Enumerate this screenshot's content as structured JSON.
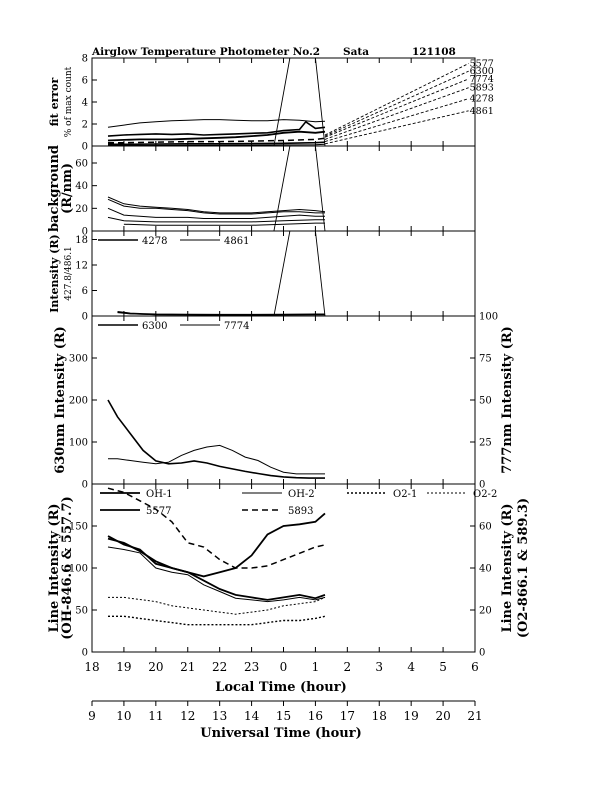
{
  "header": {
    "title": "Airglow Temperature Photometer No.2",
    "site": "Sata",
    "date": "121108"
  },
  "x_axes": {
    "local": {
      "label": "Local Time (hour)",
      "ticks": [
        "18",
        "19",
        "20",
        "21",
        "22",
        "23",
        "0",
        "1",
        "2",
        "3",
        "4",
        "5",
        "6"
      ],
      "range": [
        18,
        30
      ]
    },
    "universal": {
      "label": "Universal Time (hour)",
      "ticks": [
        "9",
        "10",
        "11",
        "12",
        "13",
        "14",
        "15",
        "16",
        "17",
        "18",
        "19",
        "20",
        "21"
      ],
      "range": [
        9,
        21
      ]
    }
  },
  "chart_data": [
    {
      "type": "line",
      "panel": "fit-error",
      "ylabel": "fit error",
      "ylabel2": "% of max count",
      "ylim": [
        0,
        8
      ],
      "yticks": [
        "0",
        "2",
        "4",
        "6",
        "8"
      ],
      "line_labels": [
        "5577",
        "6300",
        "7774",
        "5893",
        "4278",
        "4861"
      ],
      "series": [
        {
          "name": "7774",
          "x": [
            18.5,
            19,
            19.5,
            20,
            20.5,
            21,
            21.5,
            22,
            22.5,
            23,
            23.5,
            24,
            24.5,
            25,
            25.3
          ],
          "y": [
            1.7,
            1.9,
            2.1,
            2.2,
            2.3,
            2.35,
            2.4,
            2.4,
            2.35,
            2.3,
            2.3,
            2.4,
            2.35,
            2.2,
            2.25
          ]
        },
        {
          "name": "6300",
          "x": [
            18.5,
            19,
            19.5,
            20,
            20.5,
            21,
            21.5,
            22,
            22.5,
            23,
            23.5,
            24,
            24.5,
            24.7,
            25,
            25.3
          ],
          "y": [
            0.9,
            1.0,
            1.05,
            1.1,
            1.05,
            1.1,
            1.0,
            1.05,
            1.1,
            1.15,
            1.2,
            1.4,
            1.5,
            2.2,
            1.6,
            1.7
          ]
        },
        {
          "name": "5577",
          "x": [
            18.5,
            19,
            19.5,
            20,
            20.5,
            21,
            21.5,
            22,
            22.5,
            23,
            23.5,
            24,
            24.5,
            25,
            25.3
          ],
          "y": [
            0.5,
            0.55,
            0.6,
            0.6,
            0.6,
            0.65,
            0.7,
            0.75,
            0.8,
            0.9,
            1.0,
            1.2,
            1.3,
            1.2,
            1.3
          ]
        },
        {
          "name": "5893",
          "x": [
            18.5,
            19,
            20,
            21,
            22,
            23,
            24,
            25,
            25.3
          ],
          "y": [
            0.3,
            0.3,
            0.35,
            0.4,
            0.4,
            0.45,
            0.5,
            0.6,
            0.7
          ]
        },
        {
          "name": "4278",
          "x": [
            18.5,
            19,
            20,
            21,
            22,
            23,
            24,
            25,
            25.3
          ],
          "y": [
            0.15,
            0.15,
            0.18,
            0.2,
            0.2,
            0.22,
            0.25,
            0.3,
            0.35
          ]
        },
        {
          "name": "4861",
          "x": [
            18.5,
            19,
            20,
            21,
            22,
            23,
            24,
            25,
            25.3
          ],
          "y": [
            0.05,
            0.05,
            0.06,
            0.07,
            0.07,
            0.08,
            0.1,
            0.12,
            0.15
          ]
        }
      ],
      "dashed": [
        {
          "name": "5577",
          "x": [
            25.3,
            29.8
          ],
          "y": [
            1.0,
            7.5
          ]
        },
        {
          "name": "6300",
          "x": [
            25.3,
            29.8
          ],
          "y": [
            0.9,
            6.8
          ]
        },
        {
          "name": "7774",
          "x": [
            25.3,
            29.8
          ],
          "y": [
            0.8,
            6.1
          ]
        },
        {
          "name": "5893",
          "x": [
            25.3,
            29.8
          ],
          "y": [
            0.6,
            5.3
          ]
        },
        {
          "name": "4278",
          "x": [
            25.3,
            29.8
          ],
          "y": [
            0.4,
            4.3
          ]
        },
        {
          "name": "4861",
          "x": [
            25.3,
            29.8
          ],
          "y": [
            0.2,
            3.2
          ]
        }
      ],
      "moon": {
        "x": [
          23.7,
          24.2,
          25.0,
          25.3
        ],
        "y": [
          0,
          8,
          8,
          0
        ]
      }
    },
    {
      "type": "line",
      "panel": "background",
      "ylabel": "background",
      "ylabel2": "(R/nm)",
      "ylim": [
        0,
        75
      ],
      "yticks": [
        "0",
        "20",
        "40",
        "60"
      ],
      "series": [
        {
          "name": "bg1",
          "x": [
            18.5,
            19,
            19.5,
            20,
            20.5,
            21,
            21.5,
            22,
            22.5,
            23,
            23.5,
            24,
            24.5,
            25,
            25.3
          ],
          "y": [
            30,
            24,
            22,
            21,
            20,
            19,
            17,
            16,
            16,
            16,
            17,
            18,
            19,
            18,
            17
          ]
        },
        {
          "name": "bg2",
          "x": [
            18.5,
            19,
            19.5,
            20,
            20.5,
            21,
            21.5,
            22,
            22.5,
            23,
            23.5,
            24,
            24.5,
            25,
            25.3
          ],
          "y": [
            28,
            22,
            20,
            20,
            19,
            18,
            16,
            15,
            15,
            15,
            16,
            17,
            17,
            16,
            16
          ]
        },
        {
          "name": "bg3",
          "x": [
            18.5,
            19,
            19.5,
            20,
            20.5,
            21,
            21.5,
            22,
            22.5,
            23,
            23.5,
            24,
            24.5,
            25,
            25.3
          ],
          "y": [
            20,
            14,
            13,
            12,
            12,
            12,
            11,
            11,
            11,
            11,
            12,
            13,
            14,
            13,
            13
          ]
        },
        {
          "name": "bg4",
          "x": [
            18.5,
            19,
            20,
            21,
            22,
            23,
            24,
            25,
            25.3
          ],
          "y": [
            12,
            9,
            8,
            8,
            8,
            8,
            9,
            10,
            10
          ]
        },
        {
          "name": "bg5",
          "x": [
            19,
            20,
            21,
            22,
            23,
            24,
            25,
            25.3
          ],
          "y": [
            6,
            5,
            5,
            5,
            5,
            6,
            7,
            7
          ]
        }
      ],
      "moon": {
        "x": [
          23.7,
          24.2,
          25.0,
          25.3
        ],
        "y": [
          0,
          75,
          75,
          0
        ]
      }
    },
    {
      "type": "line",
      "panel": "intensity-4278-4861",
      "ylabel": "Intensity (R)",
      "ylabel2": "427.8/486.1",
      "ylim": [
        0,
        20
      ],
      "yticks": [
        "0",
        "6",
        "12",
        "18"
      ],
      "legend": [
        "4278",
        "4861"
      ],
      "series": [
        {
          "name": "4278",
          "x": [
            18.8,
            19.2,
            19.6,
            20,
            21,
            22,
            23,
            24,
            25,
            25.3
          ],
          "y": [
            1.0,
            0.6,
            0.5,
            0.4,
            0.35,
            0.3,
            0.3,
            0.35,
            0.4,
            0.4
          ]
        },
        {
          "name": "4861",
          "x": [
            18.8,
            19.2,
            19.6,
            20,
            21,
            22,
            23,
            24,
            25,
            25.3
          ],
          "y": [
            0.8,
            0.5,
            0.4,
            0.3,
            0.25,
            0.2,
            0.2,
            0.25,
            0.3,
            0.3
          ]
        }
      ],
      "moon": {
        "x": [
          23.7,
          24.2,
          25.0,
          25.3
        ],
        "y": [
          0,
          20,
          20,
          0
        ]
      }
    },
    {
      "type": "line",
      "panel": "intensity-6300-7774",
      "ylabel": "630nm Intensity (R)",
      "ylabel_right": "777nm Intensity (R)",
      "ylim": [
        0,
        400
      ],
      "yticks": [
        "0",
        "100",
        "200",
        "300"
      ],
      "ylim_right": [
        0,
        100
      ],
      "yticks_right": [
        "0",
        "25",
        "50",
        "75",
        "100"
      ],
      "legend": [
        "6300",
        "7774"
      ],
      "series": [
        {
          "name": "6300",
          "x": [
            18.5,
            18.8,
            19.2,
            19.6,
            20,
            20.4,
            20.8,
            21.2,
            21.6,
            22,
            22.4,
            22.8,
            23.2,
            23.6,
            24,
            24.4,
            24.8,
            25.3
          ],
          "y": [
            200,
            160,
            120,
            80,
            55,
            48,
            50,
            55,
            50,
            42,
            36,
            30,
            25,
            20,
            17,
            15,
            14,
            14
          ]
        },
        {
          "name": "7774",
          "x": [
            18.5,
            18.8,
            19.2,
            19.6,
            20,
            20.4,
            20.8,
            21.2,
            21.6,
            22,
            22.4,
            22.8,
            23.2,
            23.6,
            24,
            24.4,
            24.8,
            25.3
          ],
          "y": [
            15,
            15,
            14,
            13,
            12,
            13,
            17,
            20,
            22,
            23,
            20,
            16,
            14,
            10,
            7,
            6,
            6,
            6
          ]
        }
      ]
    },
    {
      "type": "line",
      "panel": "line-intensity",
      "ylabel": "Line Intensity (R)",
      "ylabel2": "(OH-846.6 & 557.7)",
      "ylabel_right": "Line Intensity (R)",
      "ylabel_right2": "(O2-866.1 & 589.3)",
      "ylim": [
        0,
        200
      ],
      "yticks": [
        "0",
        "50",
        "100",
        "150"
      ],
      "ylim_right": [
        0,
        80
      ],
      "yticks_right": [
        "0",
        "20",
        "40",
        "60"
      ],
      "legend": [
        "OH-1",
        "OH-2",
        "O2-1",
        "O2-2",
        "5577",
        "5893"
      ],
      "series": [
        {
          "name": "OH-1",
          "x": [
            18.5,
            19,
            19.5,
            20,
            20.5,
            21,
            21.5,
            22,
            22.5,
            23,
            23.5,
            24,
            24.5,
            25,
            25.3
          ],
          "y": [
            138,
            128,
            122,
            105,
            100,
            95,
            85,
            75,
            68,
            65,
            62,
            65,
            68,
            64,
            68
          ]
        },
        {
          "name": "OH-2",
          "x": [
            18.5,
            19,
            19.5,
            20,
            20.5,
            21,
            21.5,
            22,
            22.5,
            23,
            23.5,
            24,
            24.5,
            25,
            25.3
          ],
          "y": [
            125,
            122,
            118,
            100,
            95,
            92,
            80,
            72,
            64,
            62,
            60,
            62,
            65,
            62,
            65
          ]
        },
        {
          "name": "5577",
          "x": [
            18.5,
            19,
            19.5,
            20,
            20.5,
            21,
            21.5,
            22,
            22.5,
            23,
            23.5,
            24,
            24.5,
            25,
            25.3
          ],
          "y": [
            135,
            130,
            120,
            108,
            100,
            95,
            90,
            95,
            100,
            115,
            140,
            150,
            152,
            155,
            165
          ]
        },
        {
          "name": "O2-1",
          "x": [
            18.5,
            19,
            19.5,
            20,
            20.5,
            21,
            21.5,
            22,
            22.5,
            23,
            23.5,
            24,
            24.5,
            25,
            25.3
          ],
          "y": [
            17,
            17,
            16,
            15,
            14,
            13,
            13,
            13,
            13,
            13,
            14,
            15,
            15,
            16,
            17
          ]
        },
        {
          "name": "O2-2",
          "x": [
            18.5,
            19,
            19.5,
            20,
            20.5,
            21,
            21.5,
            22,
            22.5,
            23,
            23.5,
            24,
            24.5,
            25,
            25.3
          ],
          "y": [
            26,
            26,
            25,
            24,
            22,
            21,
            20,
            19,
            18,
            19,
            20,
            22,
            23,
            24,
            26
          ]
        },
        {
          "name": "5893",
          "x": [
            18.5,
            19,
            19.5,
            20,
            20.5,
            21,
            21.5,
            22,
            22.5,
            23,
            23.5,
            24,
            24.5,
            25,
            25.3
          ],
          "y": [
            78,
            76,
            72,
            68,
            62,
            52,
            50,
            44,
            40,
            40,
            41,
            44,
            47,
            50,
            51
          ]
        }
      ]
    }
  ]
}
